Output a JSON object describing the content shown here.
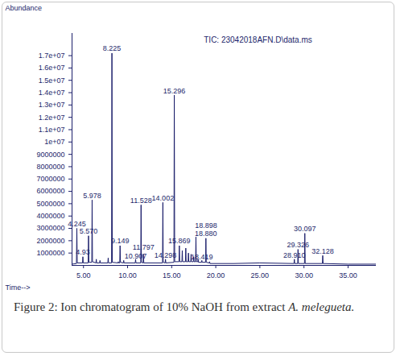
{
  "chart_data": {
    "type": "line",
    "title": "TIC: 23042018AFN.D\\data.ms",
    "y_label": "Abundance",
    "x_label": "Time-->",
    "caption": {
      "text": "Figure 2: Ion chromatogram of 10% NaOH from extract",
      "italic": "A. melegueta."
    },
    "xlim": [
      3.7,
      38.2
    ],
    "ylim": [
      0,
      18800000
    ],
    "xticks": [
      {
        "value": 5,
        "label": "5.00"
      },
      {
        "value": 10,
        "label": "10.00"
      },
      {
        "value": 15,
        "label": "15.00"
      },
      {
        "value": 20,
        "label": "20.00"
      },
      {
        "value": 25,
        "label": "25.00"
      },
      {
        "value": 30,
        "label": "30.00"
      },
      {
        "value": 35,
        "label": "35.00"
      }
    ],
    "yticks": [
      1000000,
      2000000,
      3000000,
      4000000,
      5000000,
      6000000,
      7000000,
      8000000,
      9000000,
      {
        "value": 10000000,
        "label": "1e+07"
      },
      {
        "value": 11000000,
        "label": "1.1e+07"
      },
      {
        "value": 12000000,
        "label": "1.2e+07"
      },
      {
        "value": 13000000,
        "label": "1.3e+07"
      },
      {
        "value": 14000000,
        "label": "1.4e+07"
      },
      {
        "value": 15000000,
        "label": "1.5e+07"
      },
      {
        "value": 16000000,
        "label": "1.6e+07"
      },
      {
        "value": 17000000,
        "label": "1.7e+07"
      }
    ],
    "grid": false,
    "series": [
      {
        "name": "TIC",
        "color": "#1c1f6b",
        "x": [
          3.7,
          4.2,
          4.245,
          4.29,
          4.89,
          4.93,
          4.97,
          5.53,
          5.57,
          5.61,
          5.94,
          5.978,
          6.02,
          6.41,
          6.45,
          6.49,
          6.83,
          6.87,
          6.91,
          7.76,
          7.8,
          7.84,
          8.185,
          8.225,
          8.265,
          8.91,
          8.95,
          8.99,
          9.11,
          9.149,
          9.19,
          9.52,
          9.56,
          9.6,
          10.87,
          10.907,
          10.95,
          11.49,
          11.528,
          11.57,
          11.76,
          11.797,
          11.84,
          13.96,
          14.002,
          14.04,
          14.26,
          14.298,
          14.34,
          15.255,
          15.296,
          15.34,
          15.83,
          15.869,
          15.91,
          16.16,
          16.2,
          16.24,
          16.56,
          16.6,
          16.64,
          16.86,
          16.9,
          16.94,
          17.16,
          17.2,
          17.24,
          17.46,
          17.5,
          17.54,
          17.71,
          17.75,
          17.79,
          17.96,
          18.0,
          18.04,
          18.38,
          18.419,
          18.46,
          18.84,
          18.88,
          18.92,
          19.26,
          19.3,
          19.34,
          22.0,
          25.0,
          28.87,
          28.91,
          28.95,
          29.29,
          29.326,
          29.37,
          30.06,
          30.097,
          30.14,
          32.09,
          32.128,
          32.17,
          35.0,
          38.2
        ],
        "values": [
          100000,
          150000,
          3000000,
          200000,
          200000,
          700000,
          200000,
          200000,
          2400000,
          250000,
          250000,
          5300000,
          300000,
          200000,
          500000,
          200000,
          200000,
          400000,
          200000,
          200000,
          600000,
          200000,
          200000,
          17200000,
          250000,
          200000,
          300000,
          200000,
          200000,
          1600000,
          250000,
          200000,
          400000,
          200000,
          200000,
          500000,
          200000,
          200000,
          4900000,
          250000,
          200000,
          900000,
          200000,
          200000,
          5100000,
          250000,
          200000,
          500000,
          200000,
          250000,
          13800000,
          300000,
          300000,
          1600000,
          300000,
          300000,
          1200000,
          300000,
          300000,
          1400000,
          300000,
          300000,
          1000000,
          300000,
          300000,
          900000,
          300000,
          300000,
          700000,
          300000,
          300000,
          2300000,
          300000,
          300000,
          500000,
          250000,
          250000,
          400000,
          250000,
          250000,
          2200000,
          250000,
          200000,
          300000,
          150000,
          150000,
          200000,
          150000,
          500000,
          150000,
          150000,
          1300000,
          150000,
          150000,
          2600000,
          150000,
          150000,
          800000,
          150000,
          100000,
          100000
        ]
      }
    ],
    "annotations": [
      {
        "text": "4.245",
        "x": 4.245,
        "y": 3100000
      },
      {
        "text": "4.93",
        "x": 4.93,
        "y": 800000
      },
      {
        "text": "5.570",
        "x": 5.57,
        "y": 2500000
      },
      {
        "text": "5.978",
        "x": 5.978,
        "y": 5400000
      },
      {
        "text": "8.225",
        "x": 8.225,
        "y": 17300000
      },
      {
        "text": "9.149",
        "x": 9.149,
        "y": 1700000
      },
      {
        "text": "10.907",
        "x": 10.907,
        "y": 500000
      },
      {
        "text": "11.528",
        "x": 11.528,
        "y": 5000000
      },
      {
        "text": "11.797",
        "x": 11.797,
        "y": 1200000
      },
      {
        "text": "14.002",
        "x": 14.002,
        "y": 5200000
      },
      {
        "text": "14.298",
        "x": 14.298,
        "y": 550000
      },
      {
        "text": "15.296",
        "x": 15.296,
        "y": 13900000
      },
      {
        "text": "15.869",
        "x": 15.869,
        "y": 1700000
      },
      {
        "text": "18.419",
        "x": 18.419,
        "y": 450000
      },
      {
        "text": "18.880",
        "x": 18.88,
        "y": 2300000
      },
      {
        "text": "18.898",
        "x": 18.898,
        "y": 3000000
      },
      {
        "text": "28.910",
        "x": 28.91,
        "y": 550000
      },
      {
        "text": "29.326",
        "x": 29.326,
        "y": 1400000
      },
      {
        "text": "30.097",
        "x": 30.097,
        "y": 2700000
      },
      {
        "text": "32.128",
        "x": 32.128,
        "y": 900000
      }
    ]
  }
}
